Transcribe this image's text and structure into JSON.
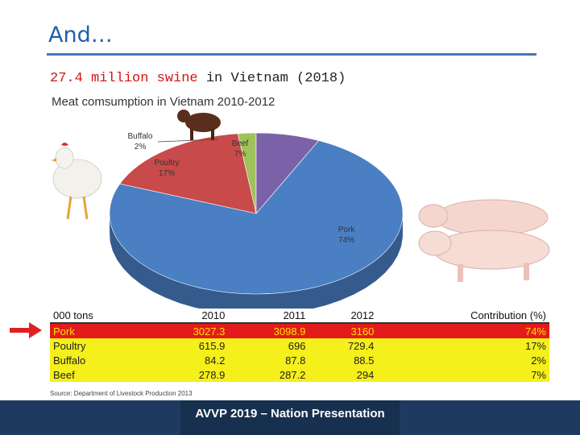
{
  "slide": {
    "title": "And…",
    "subtitle_highlight": "27.4 million swine",
    "subtitle_rest": " in Vietnam (2018)",
    "footer": "AVVP 2019 – Nation Presentation"
  },
  "chart_data": [
    {
      "type": "pie",
      "title": "Meat comsumption in Vietnam 2010-2012",
      "slices": [
        {
          "name": "Pork",
          "label": "74%",
          "value": 74,
          "color": "#4a7fc4"
        },
        {
          "name": "Poultry",
          "label": "17%",
          "value": 17,
          "color": "#c94a4a"
        },
        {
          "name": "Buffalo",
          "label": "2%",
          "value": 2,
          "color": "#9fc25a"
        },
        {
          "name": "Beef",
          "label": "7%",
          "value": 7,
          "color": "#7b62a8"
        }
      ]
    },
    {
      "type": "table",
      "columns": [
        "000 tons",
        "2010",
        "2011",
        "2012",
        "Contribution (%)"
      ],
      "rows": [
        [
          "Pork",
          "3027.3",
          "3098.9",
          "3160",
          "74%"
        ],
        [
          "Poultry",
          "615.9",
          "696",
          "729.4",
          "17%"
        ],
        [
          "Buffalo",
          "84.2",
          "87.8",
          "88.5",
          "2%"
        ],
        [
          "Beef",
          "278.9",
          "287.2",
          "294",
          "7%"
        ]
      ],
      "source": "Source: Department of Livestock Production 2013"
    }
  ],
  "colors": {
    "highlight_row": "#e31b1b",
    "table_rows": "#f5ef1b",
    "footer": "#1e3a5f",
    "title": "#1f5fa8"
  },
  "icons": [
    "chicken-image",
    "cow-image",
    "pig-image",
    "red-arrow-icon"
  ]
}
